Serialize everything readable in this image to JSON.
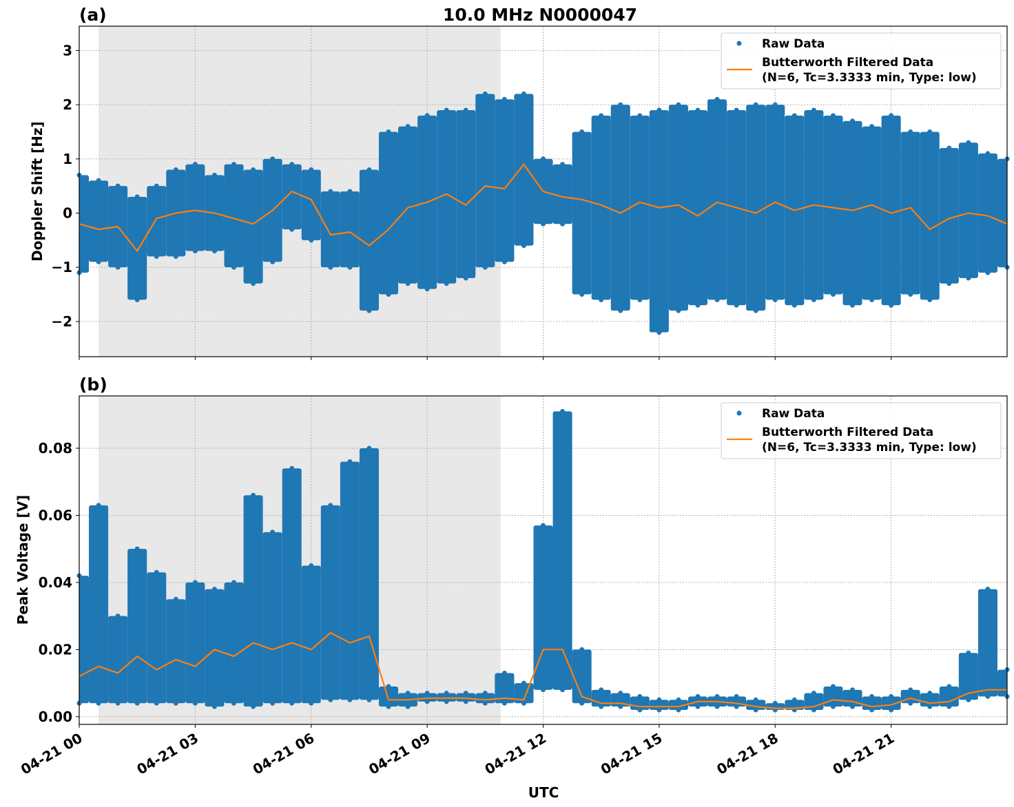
{
  "title": "10.0 MHz N0000047",
  "colors": {
    "raw": "#1f77b4",
    "filtered": "#ff7f0e",
    "shade": "#e8e8e8",
    "grid": "#b0b0b0"
  },
  "x_tick_labels": [
    "04-21 00",
    "04-21 03",
    "04-21 06",
    "04-21 09",
    "04-21 12",
    "04-21 15",
    "04-21 18",
    "04-21 21"
  ],
  "x_ticks_hours": [
    0,
    3,
    6,
    9,
    12,
    15,
    18,
    21
  ],
  "xlabel": "UTC",
  "chart_data": [
    {
      "type": "scatter",
      "panel_label": "(a)",
      "ylabel": "Doppler Shift [Hz]",
      "xlim_hours": [
        0,
        24
      ],
      "ylim": [
        -2.65,
        3.45
      ],
      "y_ticks": [
        -2,
        -1,
        0,
        1,
        2,
        3
      ],
      "y_tick_labels": [
        "−2",
        "−1",
        "0",
        "1",
        "2",
        "3"
      ],
      "grid": true,
      "shaded_interval_hours": [
        0.5,
        10.9
      ],
      "legend": {
        "placement": "top-right",
        "entries": [
          "Raw Data",
          "Butterworth Filtered Data",
          "(N=6, Tc=3.3333 min, Type: low)"
        ]
      },
      "x_hours_step": 0.5,
      "series": [
        {
          "name": "Raw Data",
          "kind": "scatter-envelope",
          "min": [
            -1.1,
            -0.9,
            -1.0,
            -1.6,
            -0.8,
            -0.8,
            -0.7,
            -0.7,
            -1.0,
            -1.3,
            -0.9,
            -0.3,
            -0.5,
            -1.0,
            -1.0,
            -1.8,
            -1.5,
            -1.3,
            -1.4,
            -1.3,
            -1.2,
            -1.0,
            -0.9,
            -0.6,
            -0.2,
            -0.2,
            -1.5,
            -1.6,
            -1.8,
            -1.6,
            -2.2,
            -1.8,
            -1.7,
            -1.6,
            -1.7,
            -1.8,
            -1.6,
            -1.7,
            -1.6,
            -1.5,
            -1.7,
            -1.6,
            -1.7,
            -1.5,
            -1.6,
            -1.3,
            -1.2,
            -1.1,
            -1.0
          ],
          "max": [
            0.7,
            0.6,
            0.5,
            0.3,
            0.5,
            0.8,
            0.9,
            0.7,
            0.9,
            0.8,
            1.0,
            0.9,
            0.8,
            0.4,
            0.4,
            0.8,
            1.5,
            1.6,
            1.8,
            1.9,
            1.9,
            2.2,
            2.1,
            2.2,
            1.0,
            0.9,
            1.5,
            1.8,
            2.0,
            1.8,
            1.9,
            2.0,
            1.9,
            2.1,
            1.9,
            2.0,
            2.0,
            1.8,
            1.9,
            1.8,
            1.7,
            1.6,
            1.8,
            1.5,
            1.5,
            1.2,
            1.3,
            1.1,
            1.0
          ]
        },
        {
          "name": "Butterworth Filtered Data",
          "kind": "line",
          "values": [
            -0.2,
            -0.3,
            -0.25,
            -0.7,
            -0.1,
            0.0,
            0.05,
            0.0,
            -0.1,
            -0.2,
            0.05,
            0.4,
            0.25,
            -0.4,
            -0.35,
            -0.6,
            -0.3,
            0.1,
            0.2,
            0.35,
            0.15,
            0.5,
            0.45,
            0.9,
            0.4,
            0.3,
            0.25,
            0.15,
            0.0,
            0.2,
            0.1,
            0.15,
            -0.05,
            0.2,
            0.1,
            0.0,
            0.2,
            0.05,
            0.15,
            0.1,
            0.05,
            0.15,
            0.0,
            0.1,
            -0.3,
            -0.1,
            0.0,
            -0.05,
            -0.2
          ]
        }
      ]
    },
    {
      "type": "scatter",
      "panel_label": "(b)",
      "ylabel": "Peak Voltage [V]",
      "xlim_hours": [
        0,
        24
      ],
      "ylim": [
        -0.0023,
        0.0956
      ],
      "y_ticks": [
        0,
        0.02,
        0.04,
        0.06,
        0.08
      ],
      "y_tick_labels": [
        "0.00",
        "0.02",
        "0.04",
        "0.06",
        "0.08"
      ],
      "grid": true,
      "shaded_interval_hours": [
        0.5,
        10.9
      ],
      "legend": {
        "placement": "top-right",
        "entries": [
          "Raw Data",
          "Butterworth Filtered Data",
          "(N=6, Tc=3.3333 min, Type: low)"
        ]
      },
      "x_hours_step": 0.5,
      "series": [
        {
          "name": "Raw Data",
          "kind": "scatter-envelope",
          "min": [
            0.004,
            0.004,
            0.004,
            0.004,
            0.004,
            0.004,
            0.004,
            0.003,
            0.004,
            0.003,
            0.004,
            0.004,
            0.004,
            0.005,
            0.005,
            0.005,
            0.003,
            0.003,
            0.0045,
            0.0045,
            0.0045,
            0.004,
            0.004,
            0.004,
            0.008,
            0.008,
            0.004,
            0.003,
            0.003,
            0.002,
            0.002,
            0.002,
            0.003,
            0.003,
            0.003,
            0.002,
            0.002,
            0.002,
            0.002,
            0.003,
            0.003,
            0.002,
            0.002,
            0.004,
            0.003,
            0.003,
            0.005,
            0.006,
            0.006
          ],
          "max": [
            0.042,
            0.063,
            0.03,
            0.05,
            0.043,
            0.035,
            0.04,
            0.038,
            0.04,
            0.066,
            0.055,
            0.074,
            0.045,
            0.063,
            0.076,
            0.08,
            0.009,
            0.007,
            0.007,
            0.007,
            0.007,
            0.007,
            0.013,
            0.01,
            0.057,
            0.091,
            0.02,
            0.008,
            0.007,
            0.006,
            0.005,
            0.005,
            0.006,
            0.006,
            0.006,
            0.005,
            0.004,
            0.005,
            0.007,
            0.009,
            0.008,
            0.006,
            0.006,
            0.008,
            0.007,
            0.009,
            0.019,
            0.038,
            0.014
          ]
        },
        {
          "name": "Butterworth Filtered Data",
          "kind": "line",
          "values": [
            0.012,
            0.015,
            0.013,
            0.018,
            0.014,
            0.017,
            0.015,
            0.02,
            0.018,
            0.022,
            0.02,
            0.022,
            0.02,
            0.025,
            0.022,
            0.024,
            0.005,
            0.005,
            0.0055,
            0.0055,
            0.0055,
            0.005,
            0.0055,
            0.005,
            0.02,
            0.02,
            0.006,
            0.004,
            0.004,
            0.003,
            0.003,
            0.003,
            0.0045,
            0.0045,
            0.004,
            0.003,
            0.0025,
            0.0025,
            0.003,
            0.005,
            0.0045,
            0.003,
            0.0035,
            0.0055,
            0.004,
            0.0045,
            0.007,
            0.008,
            0.008
          ]
        }
      ]
    }
  ]
}
